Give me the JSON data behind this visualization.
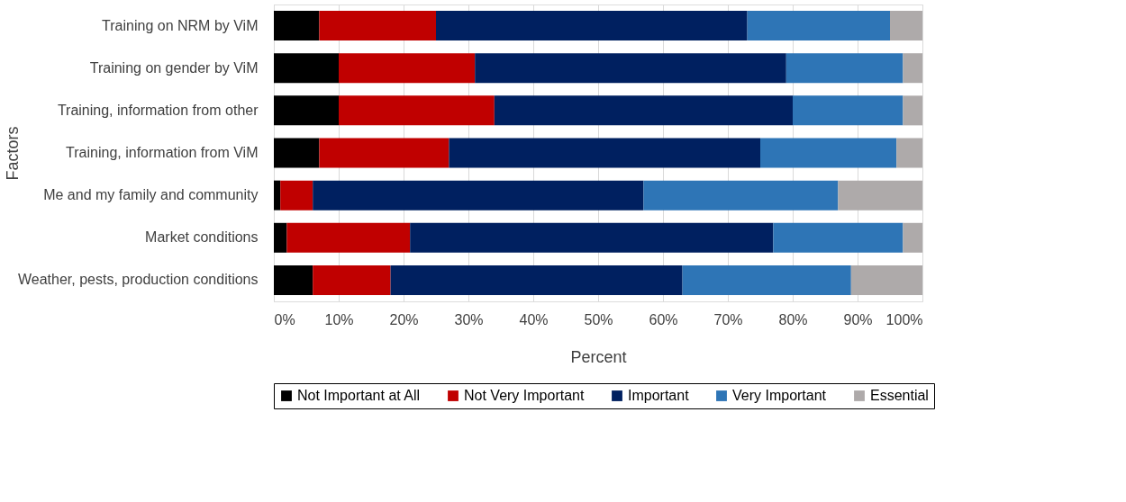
{
  "chart_data": {
    "type": "bar",
    "stacked": true,
    "orientation": "horizontal",
    "xlabel": "Percent",
    "ylabel": "Factors",
    "categories": [
      "Training on NRM by ViM",
      "Training on gender by ViM",
      "Training, information from other",
      "Training, information from ViM",
      "Me and my family and community",
      "Market conditions",
      "Weather, pests, production conditions"
    ],
    "series": [
      {
        "name": "Not Important at All",
        "color": "#000000",
        "values": [
          7,
          10,
          10,
          7,
          1,
          2,
          6
        ]
      },
      {
        "name": "Not Very Important",
        "color": "#c00000",
        "values": [
          18,
          21,
          24,
          20,
          5,
          19,
          12
        ]
      },
      {
        "name": "Important",
        "color": "#002060",
        "values": [
          48,
          48,
          46,
          48,
          51,
          56,
          45
        ]
      },
      {
        "name": "Very Important",
        "color": "#2e75b6",
        "values": [
          22,
          18,
          17,
          21,
          30,
          20,
          26
        ]
      },
      {
        "name": "Essential",
        "color": "#aeaaaa",
        "values": [
          5,
          3,
          3,
          4,
          13,
          3,
          11
        ]
      }
    ],
    "xlim": [
      0,
      100
    ],
    "xticks": [
      {
        "value": 0,
        "label": "0%"
      },
      {
        "value": 10,
        "label": "10%"
      },
      {
        "value": 20,
        "label": "20%"
      },
      {
        "value": 30,
        "label": "30%"
      },
      {
        "value": 40,
        "label": "40%"
      },
      {
        "value": 50,
        "label": "50%"
      },
      {
        "value": 60,
        "label": "60%"
      },
      {
        "value": 70,
        "label": "70%"
      },
      {
        "value": 80,
        "label": "80%"
      },
      {
        "value": 90,
        "label": "90%"
      },
      {
        "value": 100,
        "label": "100%"
      }
    ],
    "grid": "x",
    "legend": "bottom"
  }
}
